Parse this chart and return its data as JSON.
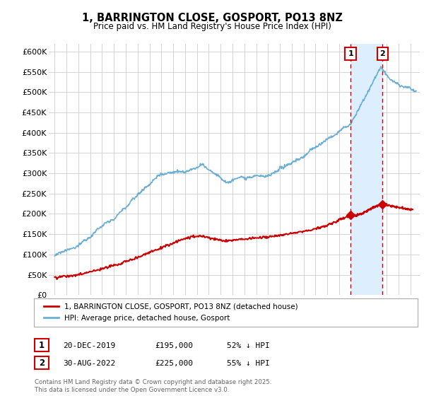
{
  "title": "1, BARRINGTON CLOSE, GOSPORT, PO13 8NZ",
  "subtitle": "Price paid vs. HM Land Registry's House Price Index (HPI)",
  "ylabel_ticks": [
    "£0",
    "£50K",
    "£100K",
    "£150K",
    "£200K",
    "£250K",
    "£300K",
    "£350K",
    "£400K",
    "£450K",
    "£500K",
    "£550K",
    "£600K"
  ],
  "ytick_values": [
    0,
    50000,
    100000,
    150000,
    200000,
    250000,
    300000,
    350000,
    400000,
    450000,
    500000,
    550000,
    600000
  ],
  "ylim": [
    0,
    620000
  ],
  "xlim_start": 1994.5,
  "xlim_end": 2025.8,
  "hpi_color": "#6baed6",
  "price_color": "#cc0000",
  "shade_color": "#ddeeff",
  "marker1_date": 2019.97,
  "marker1_price": 195000,
  "marker1_label": "1",
  "marker2_date": 2022.66,
  "marker2_price": 225000,
  "marker2_label": "2",
  "legend_line1": "1, BARRINGTON CLOSE, GOSPORT, PO13 8NZ (detached house)",
  "legend_line2": "HPI: Average price, detached house, Gosport",
  "table_row1": [
    "1",
    "20-DEC-2019",
    "£195,000",
    "52% ↓ HPI"
  ],
  "table_row2": [
    "2",
    "30-AUG-2022",
    "£225,000",
    "55% ↓ HPI"
  ],
  "footnote": "Contains HM Land Registry data © Crown copyright and database right 2025.\nThis data is licensed under the Open Government Licence v3.0.",
  "background_color": "#ffffff",
  "grid_color": "#cccccc"
}
